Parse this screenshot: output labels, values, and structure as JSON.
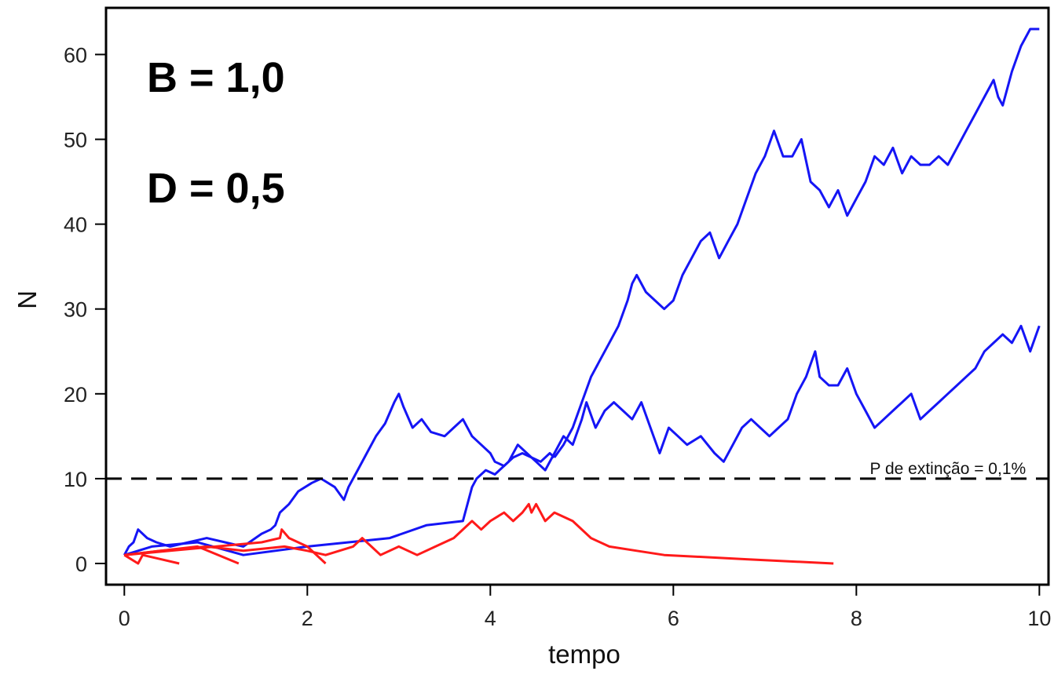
{
  "chart_data": {
    "type": "line",
    "xlabel": "tempo",
    "ylabel": "N",
    "xlim": [
      -0.2,
      10.1
    ],
    "ylim": [
      -2.5,
      65.5
    ],
    "xticks": [
      0,
      2,
      4,
      6,
      8,
      10
    ],
    "yticks": [
      0,
      10,
      20,
      30,
      40,
      50,
      60
    ],
    "grid": false,
    "legend": "none",
    "params": {
      "b_label": "B = 1,0",
      "d_label": "D = 0,5"
    },
    "threshold": {
      "y": 10,
      "label": "P de extinção = 0,1%",
      "style": "dashed",
      "color": "#000000"
    },
    "series": [
      {
        "color": "#1515f5",
        "points": [
          [
            0,
            1
          ],
          [
            0.05,
            2
          ],
          [
            0.1,
            2.5
          ],
          [
            0.15,
            4
          ],
          [
            0.25,
            3
          ],
          [
            0.35,
            2.5
          ],
          [
            0.5,
            2
          ],
          [
            0.7,
            2.5
          ],
          [
            0.9,
            3
          ],
          [
            1.1,
            2.5
          ],
          [
            1.3,
            2
          ],
          [
            1.5,
            3.5
          ],
          [
            1.6,
            4
          ],
          [
            1.65,
            4.5
          ],
          [
            1.7,
            6
          ],
          [
            1.8,
            7
          ],
          [
            1.9,
            8.5
          ],
          [
            2.05,
            9.5
          ],
          [
            2.15,
            10
          ],
          [
            2.3,
            9
          ],
          [
            2.4,
            7.5
          ],
          [
            2.45,
            9
          ],
          [
            2.55,
            11
          ],
          [
            2.65,
            13
          ],
          [
            2.75,
            15
          ],
          [
            2.85,
            16.5
          ],
          [
            2.95,
            19
          ],
          [
            3.0,
            20
          ],
          [
            3.05,
            18.5
          ],
          [
            3.15,
            16
          ],
          [
            3.25,
            17
          ],
          [
            3.35,
            15.5
          ],
          [
            3.5,
            15
          ],
          [
            3.6,
            16
          ],
          [
            3.7,
            17
          ],
          [
            3.8,
            15
          ],
          [
            3.9,
            14
          ],
          [
            4.0,
            13
          ],
          [
            4.05,
            12
          ],
          [
            4.15,
            11.5
          ],
          [
            4.25,
            12.5
          ],
          [
            4.35,
            13
          ],
          [
            4.45,
            12.5
          ],
          [
            4.55,
            12
          ],
          [
            4.65,
            13
          ],
          [
            4.7,
            12.5
          ]
        ]
      },
      {
        "color": "#1515f5",
        "points": [
          [
            0,
            1
          ],
          [
            0.3,
            2
          ],
          [
            0.8,
            2.5
          ],
          [
            1.3,
            1
          ],
          [
            2.0,
            2
          ],
          [
            2.9,
            3
          ],
          [
            3.3,
            4.5
          ],
          [
            3.7,
            5
          ],
          [
            3.8,
            9
          ],
          [
            3.85,
            10
          ],
          [
            3.95,
            11
          ],
          [
            4.05,
            10.5
          ],
          [
            4.2,
            12
          ],
          [
            4.3,
            14
          ],
          [
            4.4,
            13
          ],
          [
            4.5,
            12
          ],
          [
            4.6,
            11
          ],
          [
            4.7,
            13
          ],
          [
            4.8,
            15
          ],
          [
            4.9,
            14
          ],
          [
            5.0,
            17
          ],
          [
            5.05,
            19
          ],
          [
            5.15,
            16
          ],
          [
            5.25,
            18
          ],
          [
            5.35,
            19
          ],
          [
            5.45,
            18
          ],
          [
            5.55,
            17
          ],
          [
            5.65,
            19
          ],
          [
            5.75,
            16
          ],
          [
            5.85,
            13
          ],
          [
            5.95,
            16
          ],
          [
            6.05,
            15
          ],
          [
            6.15,
            14
          ],
          [
            6.3,
            15
          ],
          [
            6.45,
            13
          ],
          [
            6.55,
            12
          ],
          [
            6.65,
            14
          ],
          [
            6.75,
            16
          ],
          [
            6.85,
            17
          ],
          [
            6.95,
            16
          ],
          [
            7.05,
            15
          ],
          [
            7.15,
            16
          ],
          [
            7.25,
            17
          ],
          [
            7.35,
            20
          ],
          [
            7.45,
            22
          ],
          [
            7.55,
            25
          ],
          [
            7.6,
            22
          ],
          [
            7.7,
            21
          ],
          [
            7.8,
            21
          ],
          [
            7.9,
            23
          ],
          [
            8.0,
            20
          ],
          [
            8.1,
            18
          ],
          [
            8.2,
            16
          ],
          [
            8.3,
            17
          ],
          [
            8.4,
            18
          ],
          [
            8.5,
            19
          ],
          [
            8.6,
            20
          ],
          [
            8.7,
            17
          ],
          [
            8.8,
            18
          ],
          [
            8.9,
            19
          ],
          [
            9.0,
            20
          ],
          [
            9.1,
            21
          ],
          [
            9.2,
            22
          ],
          [
            9.3,
            23
          ],
          [
            9.4,
            25
          ],
          [
            9.5,
            26
          ],
          [
            9.6,
            27
          ],
          [
            9.7,
            26
          ],
          [
            9.8,
            28
          ],
          [
            9.9,
            25
          ],
          [
            10.0,
            28
          ]
        ]
      },
      {
        "color": "#1515f5",
        "points": [
          [
            4.7,
            12.5
          ],
          [
            4.8,
            14
          ],
          [
            4.9,
            16
          ],
          [
            5.0,
            19
          ],
          [
            5.1,
            22
          ],
          [
            5.2,
            24
          ],
          [
            5.3,
            26
          ],
          [
            5.4,
            28
          ],
          [
            5.5,
            31
          ],
          [
            5.55,
            33
          ],
          [
            5.6,
            34
          ],
          [
            5.7,
            32
          ],
          [
            5.8,
            31
          ],
          [
            5.9,
            30
          ],
          [
            6.0,
            31
          ],
          [
            6.1,
            34
          ],
          [
            6.2,
            36
          ],
          [
            6.3,
            38
          ],
          [
            6.4,
            39
          ],
          [
            6.5,
            36
          ],
          [
            6.6,
            38
          ],
          [
            6.7,
            40
          ],
          [
            6.8,
            43
          ],
          [
            6.9,
            46
          ],
          [
            7.0,
            48
          ],
          [
            7.1,
            51
          ],
          [
            7.2,
            48
          ],
          [
            7.3,
            48
          ],
          [
            7.4,
            50
          ],
          [
            7.5,
            45
          ],
          [
            7.6,
            44
          ],
          [
            7.7,
            42
          ],
          [
            7.8,
            44
          ],
          [
            7.9,
            41
          ],
          [
            8.0,
            43
          ],
          [
            8.1,
            45
          ],
          [
            8.2,
            48
          ],
          [
            8.3,
            47
          ],
          [
            8.4,
            49
          ],
          [
            8.5,
            46
          ],
          [
            8.6,
            48
          ],
          [
            8.7,
            47
          ],
          [
            8.8,
            47
          ],
          [
            8.9,
            48
          ],
          [
            9.0,
            47
          ],
          [
            9.1,
            49
          ],
          [
            9.2,
            51
          ],
          [
            9.3,
            53
          ],
          [
            9.4,
            55
          ],
          [
            9.5,
            57
          ],
          [
            9.55,
            55
          ],
          [
            9.6,
            54
          ],
          [
            9.7,
            58
          ],
          [
            9.8,
            61
          ],
          [
            9.9,
            63
          ],
          [
            10.0,
            63
          ]
        ]
      },
      {
        "color": "#ff1a1a",
        "points": [
          [
            0,
            1
          ],
          [
            0.15,
            0
          ],
          [
            0.2,
            1
          ],
          [
            0.4,
            0.5
          ],
          [
            0.6,
            0
          ]
        ]
      },
      {
        "color": "#ff1a1a",
        "points": [
          [
            0,
            1
          ],
          [
            0.4,
            1.5
          ],
          [
            0.8,
            2
          ],
          [
            1.25,
            0
          ]
        ]
      },
      {
        "color": "#ff1a1a",
        "points": [
          [
            0,
            1
          ],
          [
            0.5,
            1.5
          ],
          [
            1.0,
            2
          ],
          [
            1.5,
            2.5
          ],
          [
            1.7,
            3
          ],
          [
            1.72,
            4
          ],
          [
            1.8,
            3
          ],
          [
            1.9,
            2.5
          ],
          [
            2.0,
            2
          ],
          [
            2.2,
            0
          ]
        ]
      },
      {
        "color": "#ff1a1a",
        "points": [
          [
            0,
            1
          ],
          [
            0.4,
            1.5
          ],
          [
            0.9,
            2
          ],
          [
            1.3,
            1.5
          ],
          [
            1.75,
            2
          ],
          [
            2.0,
            1.5
          ],
          [
            2.2,
            1
          ],
          [
            2.5,
            2
          ],
          [
            2.6,
            3
          ],
          [
            2.7,
            2
          ],
          [
            2.8,
            1
          ],
          [
            3.0,
            2
          ],
          [
            3.2,
            1
          ],
          [
            3.4,
            2
          ],
          [
            3.6,
            3
          ],
          [
            3.8,
            5
          ],
          [
            3.9,
            4
          ],
          [
            4.0,
            5
          ],
          [
            4.15,
            6
          ],
          [
            4.25,
            5
          ],
          [
            4.35,
            6
          ],
          [
            4.42,
            7
          ],
          [
            4.45,
            6
          ],
          [
            4.5,
            7
          ],
          [
            4.55,
            6
          ],
          [
            4.6,
            5
          ],
          [
            4.7,
            6
          ],
          [
            4.9,
            5
          ],
          [
            5.1,
            3
          ],
          [
            5.3,
            2
          ],
          [
            5.6,
            1.5
          ],
          [
            5.9,
            1
          ],
          [
            6.8,
            0.5
          ],
          [
            7.75,
            0
          ]
        ]
      }
    ]
  }
}
